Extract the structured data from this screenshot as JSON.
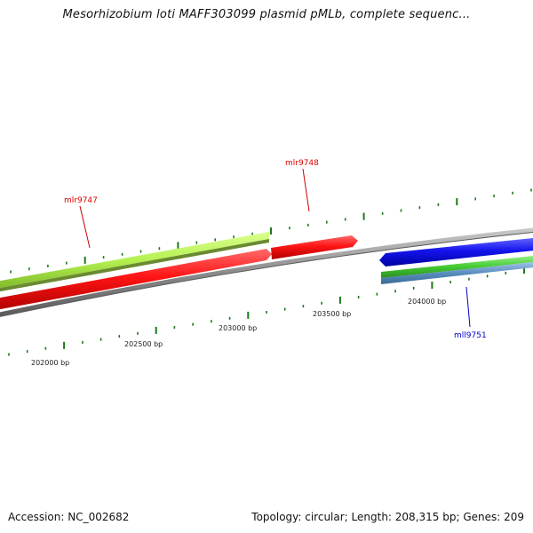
{
  "title": "Mesorhizobium loti MAFF303099 plasmid pMLb, complete sequenc...",
  "footer": {
    "accession": "Accession: NC_002682",
    "summary": "Topology: circular; Length: 208,315 bp; Genes: 209"
  },
  "ruler": {
    "ticks": [
      "202000 bp",
      "202500 bp",
      "203000 bp",
      "203500 bp",
      "204000 bp"
    ]
  },
  "genes": [
    {
      "name": "mlr9747",
      "strand": "forward",
      "color": "#dd0000"
    },
    {
      "name": "mlr9748",
      "strand": "forward",
      "color": "#dd0000"
    },
    {
      "name": "mll9751",
      "strand": "reverse",
      "color": "#0000cc"
    }
  ],
  "colors": {
    "forward_cds": "#ff1010",
    "reverse_cds": "#1010ee",
    "forward_gene_bar": "#b4f050",
    "reverse_gene_bar": "#44cc33",
    "reverse_gene_bar_2": "#5b8fbf",
    "backbone": "#8c8c8c",
    "tick": "#1a7a1a"
  }
}
